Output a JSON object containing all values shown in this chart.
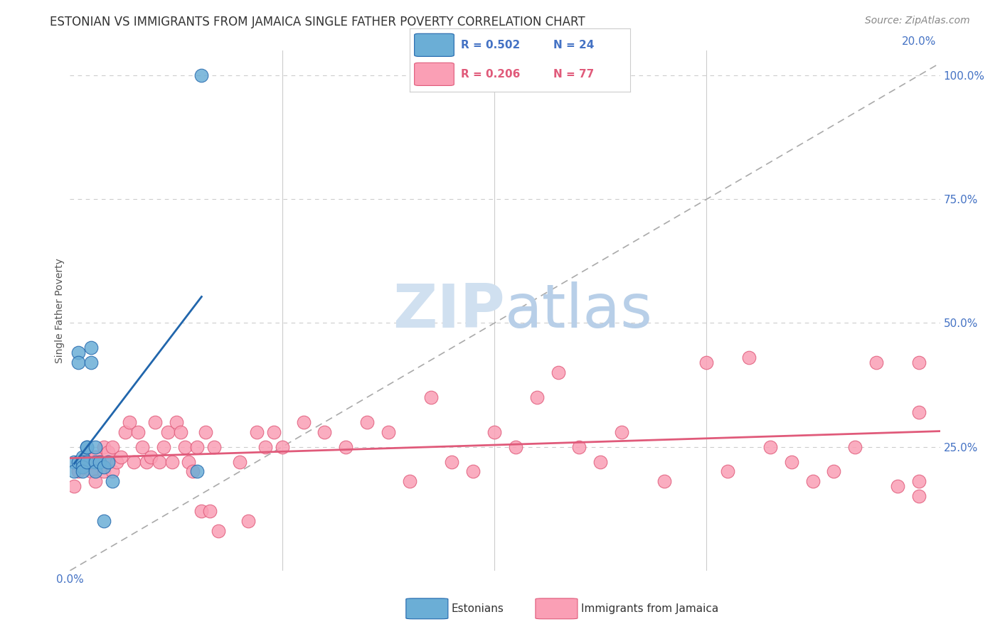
{
  "title": "ESTONIAN VS IMMIGRANTS FROM JAMAICA SINGLE FATHER POVERTY CORRELATION CHART",
  "source": "Source: ZipAtlas.com",
  "ylabel": "Single Father Poverty",
  "right_ytick_labels": [
    "100.0%",
    "75.0%",
    "50.0%",
    "25.0%"
  ],
  "right_ytick_values": [
    1.0,
    0.75,
    0.5,
    0.25
  ],
  "legend_blue_r": "R = 0.502",
  "legend_blue_n": "N = 24",
  "legend_pink_r": "R = 0.206",
  "legend_pink_n": "N = 77",
  "legend_label_blue": "Estonians",
  "legend_label_pink": "Immigrants from Jamaica",
  "blue_color": "#6baed6",
  "pink_color": "#fa9fb5",
  "trendline_blue_color": "#2166ac",
  "trendline_pink_color": "#e05a7a",
  "watermark_color": "#d0e0f0",
  "watermark_atlas_color": "#b8cfe8",
  "background_color": "#ffffff",
  "axis_label_color": "#4472c4",
  "title_color": "#333333",
  "source_color": "#888888",
  "ylabel_color": "#555555",
  "grid_color": "#cccccc",
  "diag_color": "#aaaaaa",
  "estonian_x": [
    0.001,
    0.001,
    0.002,
    0.002,
    0.002,
    0.003,
    0.003,
    0.003,
    0.003,
    0.004,
    0.004,
    0.004,
    0.005,
    0.005,
    0.006,
    0.006,
    0.006,
    0.007,
    0.008,
    0.008,
    0.009,
    0.01,
    0.03,
    0.031
  ],
  "estonian_y": [
    0.22,
    0.2,
    0.44,
    0.42,
    0.22,
    0.23,
    0.22,
    0.21,
    0.2,
    0.25,
    0.25,
    0.22,
    0.45,
    0.42,
    0.25,
    0.22,
    0.2,
    0.22,
    0.21,
    0.1,
    0.22,
    0.18,
    0.2,
    1.0
  ],
  "jamaica_x": [
    0.001,
    0.002,
    0.003,
    0.004,
    0.005,
    0.005,
    0.006,
    0.006,
    0.007,
    0.008,
    0.008,
    0.009,
    0.009,
    0.01,
    0.01,
    0.011,
    0.012,
    0.013,
    0.014,
    0.015,
    0.016,
    0.017,
    0.018,
    0.019,
    0.02,
    0.021,
    0.022,
    0.023,
    0.024,
    0.025,
    0.026,
    0.027,
    0.028,
    0.029,
    0.03,
    0.031,
    0.032,
    0.033,
    0.034,
    0.035,
    0.04,
    0.042,
    0.044,
    0.046,
    0.048,
    0.05,
    0.055,
    0.06,
    0.065,
    0.07,
    0.075,
    0.08,
    0.085,
    0.09,
    0.095,
    0.1,
    0.105,
    0.11,
    0.115,
    0.12,
    0.125,
    0.13,
    0.14,
    0.15,
    0.155,
    0.16,
    0.165,
    0.17,
    0.175,
    0.18,
    0.185,
    0.19,
    0.195,
    0.2,
    0.2,
    0.2,
    0.2
  ],
  "jamaica_y": [
    0.17,
    0.2,
    0.22,
    0.23,
    0.2,
    0.22,
    0.18,
    0.23,
    0.22,
    0.2,
    0.25,
    0.24,
    0.22,
    0.2,
    0.25,
    0.22,
    0.23,
    0.28,
    0.3,
    0.22,
    0.28,
    0.25,
    0.22,
    0.23,
    0.3,
    0.22,
    0.25,
    0.28,
    0.22,
    0.3,
    0.28,
    0.25,
    0.22,
    0.2,
    0.25,
    0.12,
    0.28,
    0.12,
    0.25,
    0.08,
    0.22,
    0.1,
    0.28,
    0.25,
    0.28,
    0.25,
    0.3,
    0.28,
    0.25,
    0.3,
    0.28,
    0.18,
    0.35,
    0.22,
    0.2,
    0.28,
    0.25,
    0.35,
    0.4,
    0.25,
    0.22,
    0.28,
    0.18,
    0.42,
    0.2,
    0.43,
    0.25,
    0.22,
    0.18,
    0.2,
    0.25,
    0.42,
    0.17,
    0.18,
    0.42,
    0.32,
    0.15
  ],
  "xlim": [
    0.0,
    0.205
  ],
  "ylim": [
    0.0,
    1.05
  ]
}
